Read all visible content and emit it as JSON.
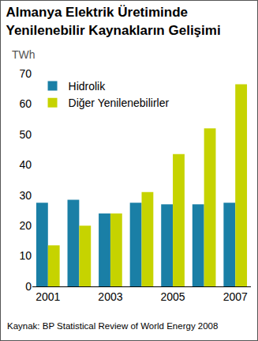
{
  "chart_data": {
    "type": "bar",
    "title": "Almanya Elektrik Üretiminde Yenilenebilir Kaynakların Gelişimi",
    "ylabel": "TWh",
    "source": "Kaynak: BP Statistical Review of World Energy 2008",
    "categories": [
      "2001",
      null,
      "2003",
      null,
      "2005",
      null,
      "2007"
    ],
    "series": [
      {
        "name": "Hidrolik",
        "color": "#1a7fa6",
        "values": [
          27.5,
          28.5,
          24,
          27.5,
          27,
          27,
          27.5
        ]
      },
      {
        "name": "Diğer Yenilenebilirler",
        "color": "#c6d300",
        "values": [
          13.5,
          20,
          24,
          31,
          43.5,
          52,
          66.5
        ]
      }
    ],
    "ylim": [
      0,
      70
    ],
    "yticks": [
      0,
      10,
      20,
      30,
      40,
      50,
      60,
      70
    ],
    "grid": false,
    "legend": "top left"
  }
}
